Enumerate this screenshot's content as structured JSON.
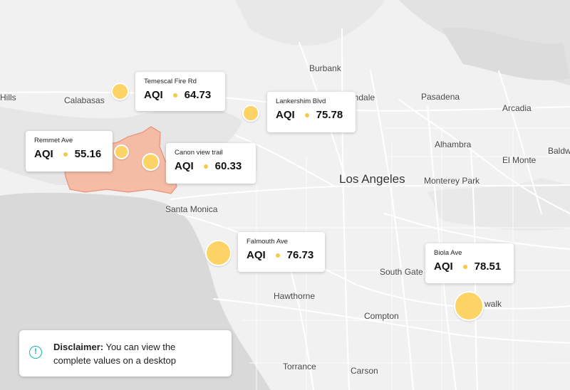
{
  "map": {
    "places": [
      {
        "id": "hills",
        "label": "Hills"
      },
      {
        "id": "calabasas",
        "label": "Calabasas"
      },
      {
        "id": "burbank",
        "label": "Burbank"
      },
      {
        "id": "glendale",
        "label": "Glendale"
      },
      {
        "id": "pasadena",
        "label": "Pasadena"
      },
      {
        "id": "arcadia",
        "label": "Arcadia"
      },
      {
        "id": "alhambra",
        "label": "Alhambra"
      },
      {
        "id": "baldwin",
        "label": "Baldw"
      },
      {
        "id": "el-monte",
        "label": "El Monte"
      },
      {
        "id": "los-angeles",
        "label": "Los Angeles"
      },
      {
        "id": "monterey-park",
        "label": "Monterey Park"
      },
      {
        "id": "santa-monica",
        "label": "Santa Monica"
      },
      {
        "id": "south-gate",
        "label": "South Gate"
      },
      {
        "id": "hawthorne",
        "label": "Hawthorne"
      },
      {
        "id": "compton",
        "label": "Compton"
      },
      {
        "id": "norwalk",
        "label": "walk"
      },
      {
        "id": "torrance",
        "label": "Torrance"
      },
      {
        "id": "carson",
        "label": "Carson"
      }
    ],
    "colors": {
      "land": "#f1f1f1",
      "water": "#d9d9d9",
      "road": "#ffffff",
      "fire_area": "#f6b79e",
      "fire_border": "#e8866a",
      "marker": "#fdd365"
    }
  },
  "stations": [
    {
      "name": "Temescal Fire Rd",
      "aqi_label": "AQI",
      "value": "64.73"
    },
    {
      "name": "Lankershim Blvd",
      "aqi_label": "AQI",
      "value": "75.78"
    },
    {
      "name": "Remmet Ave",
      "aqi_label": "AQI",
      "value": "55.16"
    },
    {
      "name": "Canon view trail",
      "aqi_label": "AQI",
      "value": "60.33"
    },
    {
      "name": "Falmouth Ave",
      "aqi_label": "AQI",
      "value": "76.73"
    },
    {
      "name": "Biola Ave",
      "aqi_label": "AQI",
      "value": "78.51"
    }
  ],
  "disclaimer": {
    "icon": "info-icon",
    "title": "Disclaimer:",
    "text_line1": " You can view the",
    "text_line2": "complete values on a desktop"
  }
}
